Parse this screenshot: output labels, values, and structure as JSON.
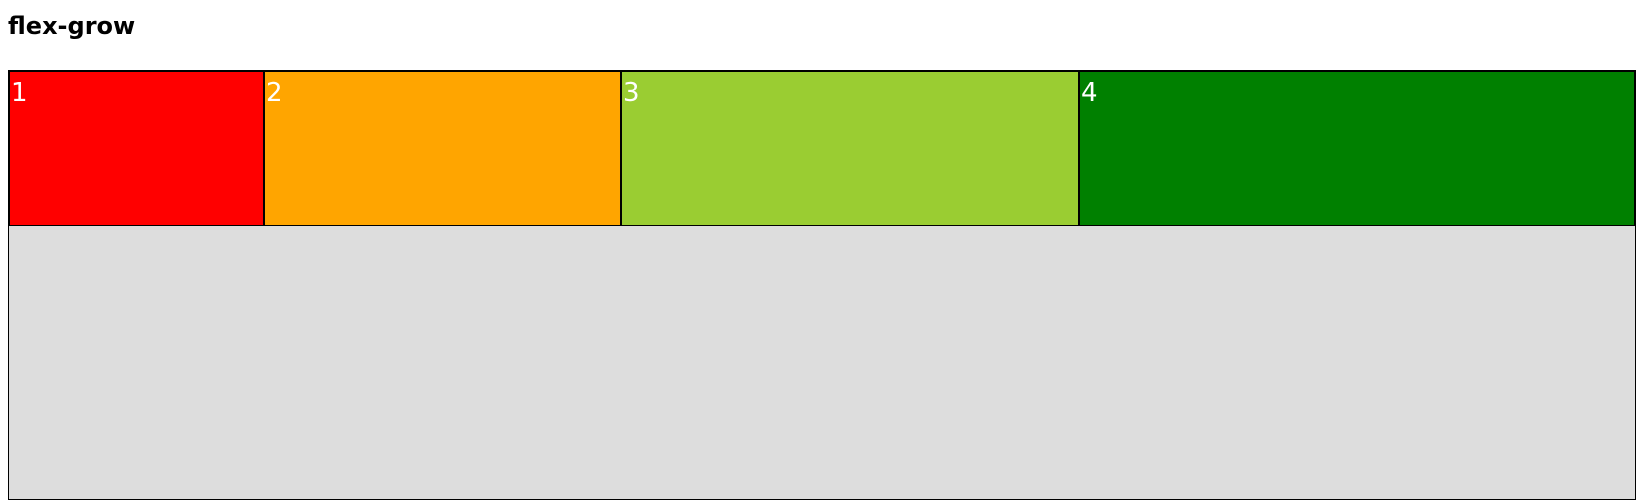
{
  "heading": "flex-grow",
  "colors": {
    "container_background": "#dddddd",
    "item_text": "#ffffff",
    "border": "#000000"
  },
  "items": [
    {
      "label": "1",
      "color": "#ff0000"
    },
    {
      "label": "2",
      "color": "#ffa500"
    },
    {
      "label": "3",
      "color": "#9acd32"
    },
    {
      "label": "4",
      "color": "#008000"
    }
  ]
}
